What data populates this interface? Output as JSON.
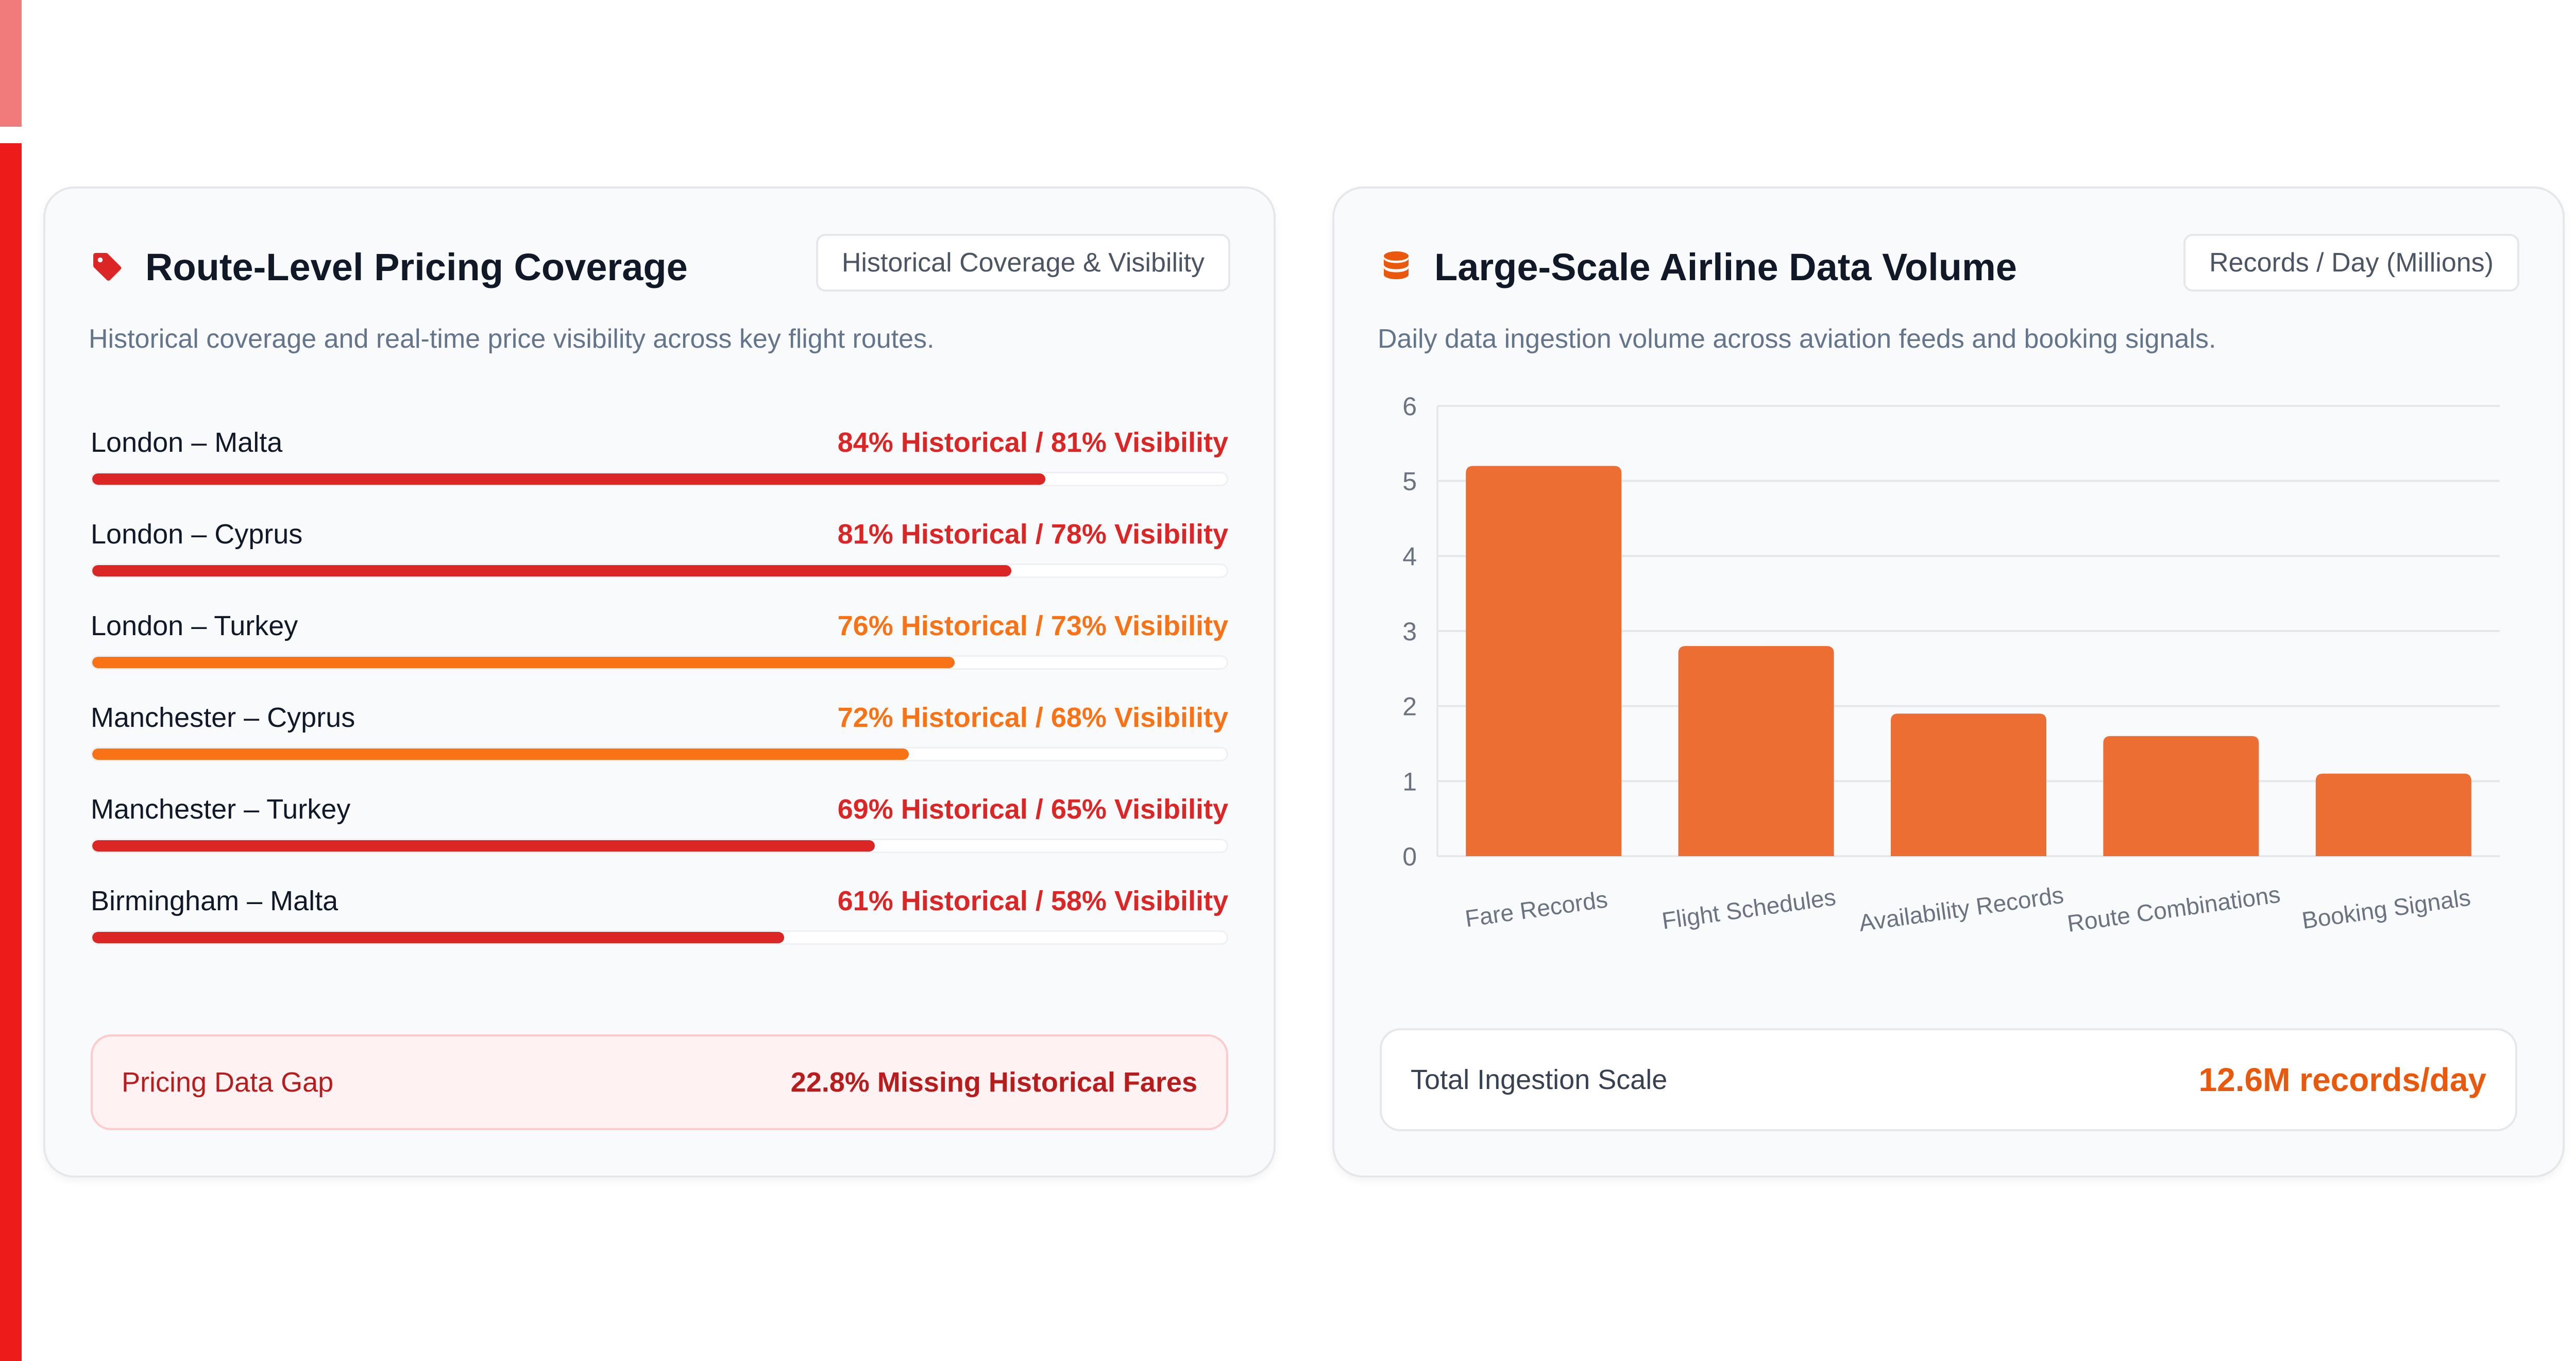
{
  "colors": {
    "accent_red": "#ee1b1b",
    "accent_red_light": "#ef7b7b",
    "red": "#dc2626",
    "orange": "#f97316",
    "bar_orange": "#ec6e32"
  },
  "left_card": {
    "icon": "price-tag-icon",
    "title": "Route-Level Pricing Coverage",
    "badge": "Historical Coverage & Visibility",
    "description": "Historical coverage and real-time price visibility across key flight routes.",
    "routes": [
      {
        "name": "London – Malta",
        "stats": "84% Historical / 81% Visibility",
        "historical": 84,
        "visibility": 81,
        "color": "#dc2626"
      },
      {
        "name": "London – Cyprus",
        "stats": "81% Historical / 78% Visibility",
        "historical": 81,
        "visibility": 78,
        "color": "#dc2626"
      },
      {
        "name": "London – Turkey",
        "stats": "76% Historical / 73% Visibility",
        "historical": 76,
        "visibility": 73,
        "color": "#f97316"
      },
      {
        "name": "Manchester – Cyprus",
        "stats": "72% Historical / 68% Visibility",
        "historical": 72,
        "visibility": 68,
        "color": "#f97316"
      },
      {
        "name": "Manchester – Turkey",
        "stats": "69% Historical / 65% Visibility",
        "historical": 69,
        "visibility": 65,
        "color": "#dc2626"
      },
      {
        "name": "Birmingham – Malta",
        "stats": "61% Historical / 58% Visibility",
        "historical": 61,
        "visibility": 58,
        "color": "#dc2626"
      }
    ],
    "gap": {
      "label": "Pricing Data Gap",
      "value": "22.8% Missing Historical Fares"
    }
  },
  "right_card": {
    "icon": "database-icon",
    "title": "Large-Scale Airline Data Volume",
    "badge": "Records / Day (Millions)",
    "description": "Daily data ingestion volume across aviation feeds and booking signals.",
    "total": {
      "label": "Total Ingestion Scale",
      "value": "12.6M records/day"
    }
  },
  "chart_data": {
    "type": "bar",
    "categories": [
      "Fare Records",
      "Flight Schedules",
      "Availability Records",
      "Route Combinations",
      "Booking Signals"
    ],
    "values": [
      5.2,
      2.8,
      1.9,
      1.6,
      1.1
    ],
    "ylim": [
      0,
      6
    ],
    "yticks": [
      "0",
      "1",
      "2",
      "3",
      "4",
      "5",
      "6"
    ],
    "grid": true,
    "color": "#ec6e32"
  }
}
